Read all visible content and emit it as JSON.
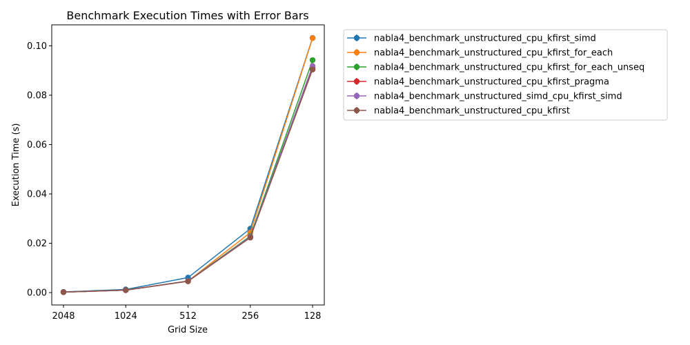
{
  "chart_data": {
    "type": "line",
    "title": "Benchmark Execution Times with Error Bars",
    "xlabel": "Grid Size",
    "ylabel": "Execution Time (s)",
    "categories": [
      "2048",
      "1024",
      "512",
      "256",
      "128"
    ],
    "ylim": [
      -0.005,
      0.1085
    ],
    "yticks": [
      0.0,
      0.02,
      0.04,
      0.06,
      0.08,
      0.1
    ],
    "ytick_labels": [
      "0.00",
      "0.02",
      "0.04",
      "0.06",
      "0.08",
      "0.10"
    ],
    "grid": false,
    "legend_position": "outside-top-right",
    "series": [
      {
        "name": "nabla4_benchmark_unstructured_cpu_kfirst_simd",
        "color": "#1f77b4",
        "values": [
          0.0003,
          0.0013,
          0.0061,
          0.0259,
          0.1032
        ]
      },
      {
        "name": "nabla4_benchmark_unstructured_cpu_kfirst_for_each",
        "color": "#ff7f0e",
        "values": [
          0.0002,
          0.001,
          0.0047,
          0.0243,
          0.1031
        ]
      },
      {
        "name": "nabla4_benchmark_unstructured_cpu_kfirst_for_each_unseq",
        "color": "#2ca02c",
        "values": [
          0.0002,
          0.001,
          0.0047,
          0.0229,
          0.0942
        ]
      },
      {
        "name": "nabla4_benchmark_unstructured_cpu_kfirst_pragma",
        "color": "#d62728",
        "values": [
          0.0002,
          0.001,
          0.0046,
          0.0224,
          0.091
        ]
      },
      {
        "name": "nabla4_benchmark_unstructured_simd_cpu_kfirst_simd",
        "color": "#9467bd",
        "values": [
          0.0002,
          0.001,
          0.0047,
          0.0226,
          0.0918
        ]
      },
      {
        "name": "nabla4_benchmark_unstructured_cpu_kfirst",
        "color": "#8c564b",
        "values": [
          0.0002,
          0.001,
          0.0046,
          0.0223,
          0.0904
        ]
      }
    ]
  }
}
